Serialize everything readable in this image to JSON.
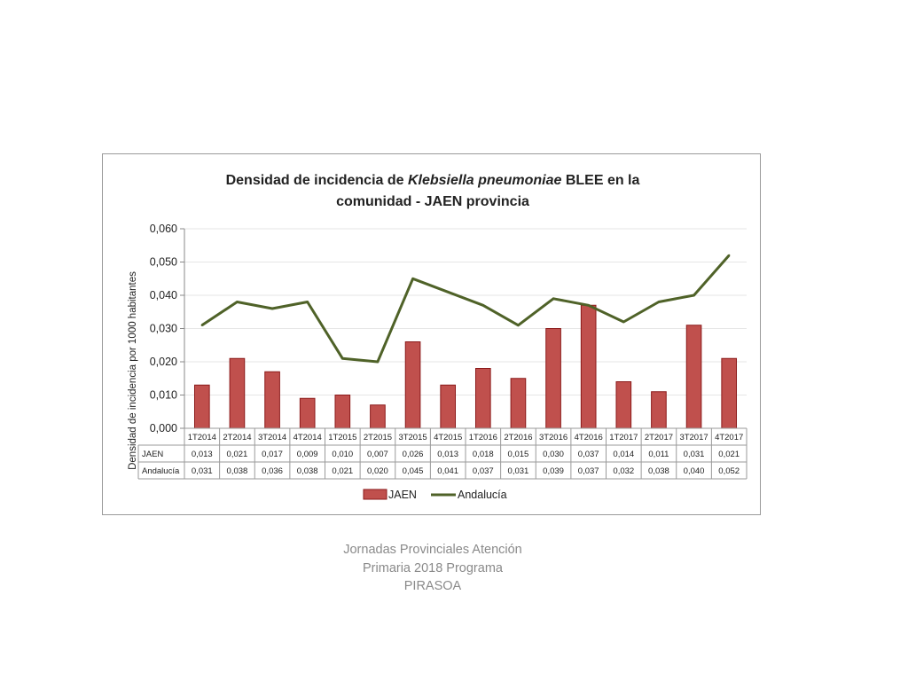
{
  "chart_data": {
    "type": "bar",
    "title_line1_prefix": "Densidad de incidencia de ",
    "title_line1_italic": "Klebsiella pneumoniae",
    "title_line1_suffix": " BLEE en la",
    "title_line2": "comunidad - JAEN provincia",
    "ylabel": "Densidad de incidencia por 1000 habitantes",
    "ylim": [
      0,
      0.06
    ],
    "yticks": [
      "0,000",
      "0,010",
      "0,020",
      "0,030",
      "0,040",
      "0,050",
      "0,060"
    ],
    "grid": true,
    "legend_position": "bottom",
    "categories": [
      "1T2014",
      "2T2014",
      "3T2014",
      "4T2014",
      "1T2015",
      "2T2015",
      "3T2015",
      "4T2015",
      "1T2016",
      "2T2016",
      "3T2016",
      "4T2016",
      "1T2017",
      "2T2017",
      "3T2017",
      "4T2017"
    ],
    "series": [
      {
        "name": "JAEN",
        "kind": "bar",
        "color": "#c0504d",
        "values": [
          0.013,
          0.021,
          0.017,
          0.009,
          0.01,
          0.007,
          0.026,
          0.013,
          0.018,
          0.015,
          0.03,
          0.037,
          0.014,
          0.011,
          0.031,
          0.021
        ],
        "labels": [
          "0,013",
          "0,021",
          "0,017",
          "0,009",
          "0,010",
          "0,007",
          "0,026",
          "0,013",
          "0,018",
          "0,015",
          "0,030",
          "0,037",
          "0,014",
          "0,011",
          "0,031",
          "0,021"
        ]
      },
      {
        "name": "Andalucía",
        "kind": "line",
        "color": "#4f6228",
        "values": [
          0.031,
          0.038,
          0.036,
          0.038,
          0.021,
          0.02,
          0.045,
          0.041,
          0.037,
          0.031,
          0.039,
          0.037,
          0.032,
          0.038,
          0.04,
          0.052
        ],
        "labels": [
          "0,031",
          "0,038",
          "0,036",
          "0,038",
          "0,021",
          "0,020",
          "0,045",
          "0,041",
          "0,037",
          "0,031",
          "0,039",
          "0,037",
          "0,032",
          "0,038",
          "0,040",
          "0,052"
        ]
      }
    ]
  },
  "footer": {
    "line1": "Jornadas Provinciales Atención",
    "line2": "Primaria 2018  Programa",
    "line3": "PIRASOA"
  }
}
